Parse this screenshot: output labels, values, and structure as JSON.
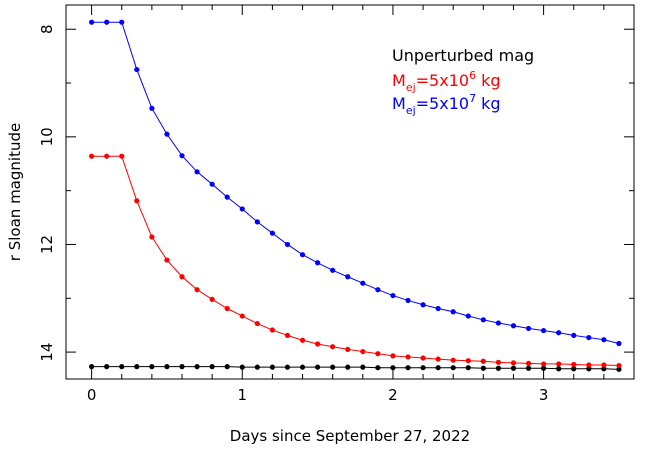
{
  "chart_data": {
    "type": "line",
    "title": "",
    "xlabel": "Days since September 27, 2022",
    "ylabel": "r Sloan magnitude",
    "xlim": [
      -0.17,
      3.6
    ],
    "ylim": [
      14.5,
      7.55
    ],
    "y_inverted": true,
    "x_ticks_major": [
      0,
      1,
      2,
      3
    ],
    "x_tick_labels": [
      "0",
      "1",
      "2",
      "3"
    ],
    "x_ticks_minor_step": 0.2,
    "y_ticks_major": [
      8,
      10,
      12,
      14
    ],
    "y_tick_labels": [
      "8",
      "10",
      "12",
      "14"
    ],
    "y_ticks_minor_step": 1,
    "grid": false,
    "legend_position": "top-right",
    "x": [
      0.0,
      0.1,
      0.2,
      0.3,
      0.4,
      0.5,
      0.6,
      0.7,
      0.8,
      0.9,
      1.0,
      1.1,
      1.2,
      1.3,
      1.4,
      1.5,
      1.6,
      1.7,
      1.8,
      1.9,
      2.0,
      2.1,
      2.2,
      2.3,
      2.4,
      2.5,
      2.6,
      2.7,
      2.8,
      2.9,
      3.0,
      3.1,
      3.2,
      3.3,
      3.4,
      3.5
    ],
    "series": [
      {
        "name": "Unperturbed mag",
        "color": "#000000",
        "values": [
          14.27,
          14.27,
          14.27,
          14.27,
          14.27,
          14.27,
          14.27,
          14.27,
          14.27,
          14.27,
          14.28,
          14.28,
          14.28,
          14.28,
          14.28,
          14.28,
          14.28,
          14.28,
          14.28,
          14.29,
          14.29,
          14.29,
          14.29,
          14.29,
          14.29,
          14.29,
          14.3,
          14.3,
          14.3,
          14.3,
          14.3,
          14.31,
          14.31,
          14.31,
          14.31,
          14.32
        ]
      },
      {
        "name": "M_ej=5x10^6 kg",
        "name_parts": {
          "base": "M",
          "sub": "ej",
          "mid": "=5x10",
          "sup": "6",
          "tail": " kg"
        },
        "color": "#ff0000",
        "values": [
          10.36,
          10.36,
          10.36,
          11.19,
          11.86,
          12.29,
          12.6,
          12.84,
          13.02,
          13.19,
          13.33,
          13.47,
          13.59,
          13.69,
          13.78,
          13.85,
          13.9,
          13.95,
          13.99,
          14.03,
          14.07,
          14.09,
          14.11,
          14.13,
          14.15,
          14.16,
          14.17,
          14.19,
          14.2,
          14.21,
          14.22,
          14.22,
          14.23,
          14.24,
          14.24,
          14.25
        ]
      },
      {
        "name": "M_ej=5x10^7 kg",
        "name_parts": {
          "base": "M",
          "sub": "ej",
          "mid": "=5x10",
          "sup": "7",
          "tail": " kg"
        },
        "color": "#0000ff",
        "values": [
          7.87,
          7.87,
          7.87,
          8.75,
          9.47,
          9.95,
          10.35,
          10.65,
          10.88,
          11.12,
          11.34,
          11.58,
          11.79,
          12.0,
          12.19,
          12.34,
          12.48,
          12.6,
          12.72,
          12.84,
          12.95,
          13.04,
          13.12,
          13.19,
          13.25,
          13.33,
          13.4,
          13.46,
          13.51,
          13.56,
          13.6,
          13.64,
          13.69,
          13.73,
          13.77,
          13.84
        ]
      }
    ]
  }
}
